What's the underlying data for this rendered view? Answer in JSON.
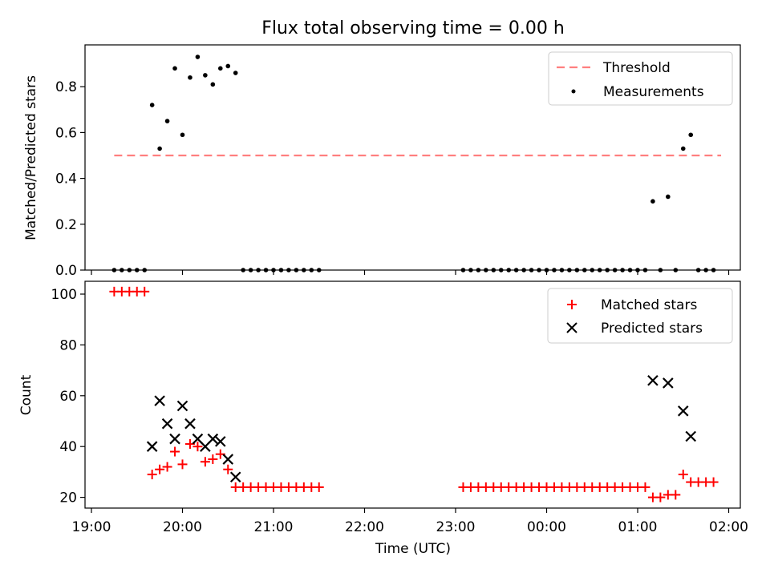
{
  "chart_data": [
    {
      "type": "scatter",
      "title": "Flux total observing time = 0.00 h",
      "ylabel": "Matched/Predicted stars",
      "xlabel": "",
      "ylim": [
        0,
        0.98
      ],
      "yticks": [
        0.0,
        0.2,
        0.4,
        0.6,
        0.8
      ],
      "ytick_labels": [
        "0.0",
        "0.2",
        "0.4",
        "0.6",
        "0.8"
      ],
      "xlim": [
        "19:00",
        "02:15"
      ],
      "legend_position": "top-right",
      "threshold": {
        "name": "Threshold",
        "color": "#ff7f7f",
        "y": 0.5,
        "x": [
          "19:15",
          "01:55"
        ]
      },
      "series": [
        {
          "name": "Measurements",
          "color": "#000000",
          "x": [
            "19:15",
            "19:20",
            "19:25",
            "19:30",
            "19:35",
            "19:40",
            "19:45",
            "19:50",
            "19:55",
            "20:00",
            "20:05",
            "20:10",
            "20:15",
            "20:20",
            "20:25",
            "20:30",
            "20:35",
            "20:40",
            "20:45",
            "20:50",
            "20:55",
            "21:00",
            "21:05",
            "21:10",
            "21:15",
            "21:20",
            "21:25",
            "21:30",
            "23:05",
            "23:10",
            "23:15",
            "23:20",
            "23:25",
            "23:30",
            "23:35",
            "23:40",
            "23:45",
            "23:50",
            "23:55",
            "00:00",
            "00:05",
            "00:10",
            "00:15",
            "00:20",
            "00:25",
            "00:30",
            "00:35",
            "00:40",
            "00:45",
            "00:50",
            "00:55",
            "01:00",
            "01:05",
            "01:10",
            "01:15",
            "01:20",
            "01:25",
            "01:30",
            "01:35",
            "01:40",
            "01:45",
            "01:50"
          ],
          "y": [
            0,
            0,
            0,
            0,
            0,
            0.72,
            0.53,
            0.65,
            0.88,
            0.59,
            0.84,
            0.93,
            0.85,
            0.81,
            0.88,
            0.89,
            0.86,
            0,
            0,
            0,
            0,
            0,
            0,
            0,
            0,
            0,
            0,
            0,
            0,
            0,
            0,
            0,
            0,
            0,
            0,
            0,
            0,
            0,
            0,
            0,
            0,
            0,
            0,
            0,
            0,
            0,
            0,
            0,
            0,
            0,
            0,
            0,
            0,
            0.3,
            0,
            0.32,
            0,
            0.53,
            0.59,
            0,
            0,
            0
          ]
        }
      ]
    },
    {
      "type": "scatter",
      "title": "",
      "xlabel": "Time (UTC)",
      "ylabel": "Count",
      "ylim": [
        16,
        105
      ],
      "yticks": [
        20,
        40,
        60,
        80,
        100
      ],
      "ytick_labels": [
        "20",
        "40",
        "60",
        "80",
        "100"
      ],
      "xlim": [
        "19:00",
        "02:15"
      ],
      "xtick_labels": [
        "19:00",
        "20:00",
        "21:00",
        "22:00",
        "23:00",
        "00:00",
        "01:00",
        "02:00"
      ],
      "legend_position": "top-right",
      "series": [
        {
          "name": "Matched stars",
          "marker": "plus",
          "color": "#ff0000",
          "x": [
            "19:15",
            "19:20",
            "19:25",
            "19:30",
            "19:35",
            "19:40",
            "19:45",
            "19:50",
            "19:55",
            "20:00",
            "20:05",
            "20:10",
            "20:15",
            "20:20",
            "20:25",
            "20:30",
            "20:35",
            "20:40",
            "20:45",
            "20:50",
            "20:55",
            "21:00",
            "21:05",
            "21:10",
            "21:15",
            "21:20",
            "21:25",
            "21:30",
            "23:05",
            "23:10",
            "23:15",
            "23:20",
            "23:25",
            "23:30",
            "23:35",
            "23:40",
            "23:45",
            "23:50",
            "23:55",
            "00:00",
            "00:05",
            "00:10",
            "00:15",
            "00:20",
            "00:25",
            "00:30",
            "00:35",
            "00:40",
            "00:45",
            "00:50",
            "00:55",
            "01:00",
            "01:05",
            "01:10",
            "01:15",
            "01:20",
            "01:25",
            "01:30",
            "01:35",
            "01:40",
            "01:45",
            "01:50"
          ],
          "y": [
            101,
            101,
            101,
            101,
            101,
            29,
            31,
            32,
            38,
            33,
            41,
            40,
            34,
            35,
            37,
            31,
            24,
            24,
            24,
            24,
            24,
            24,
            24,
            24,
            24,
            24,
            24,
            24,
            24,
            24,
            24,
            24,
            24,
            24,
            24,
            24,
            24,
            24,
            24,
            24,
            24,
            24,
            24,
            24,
            24,
            24,
            24,
            24,
            24,
            24,
            24,
            24,
            24,
            20,
            20,
            21,
            21,
            29,
            26,
            26,
            26,
            26
          ]
        },
        {
          "name": "Predicted stars",
          "marker": "x",
          "color": "#000000",
          "x": [
            "19:40",
            "19:45",
            "19:50",
            "19:55",
            "20:00",
            "20:05",
            "20:10",
            "20:15",
            "20:20",
            "20:25",
            "20:30",
            "20:35",
            "01:10",
            "01:20",
            "01:30",
            "01:35"
          ],
          "y": [
            40,
            58,
            49,
            43,
            56,
            49,
            43,
            40,
            43,
            42,
            35,
            28,
            66,
            65,
            54,
            44
          ]
        }
      ]
    }
  ]
}
